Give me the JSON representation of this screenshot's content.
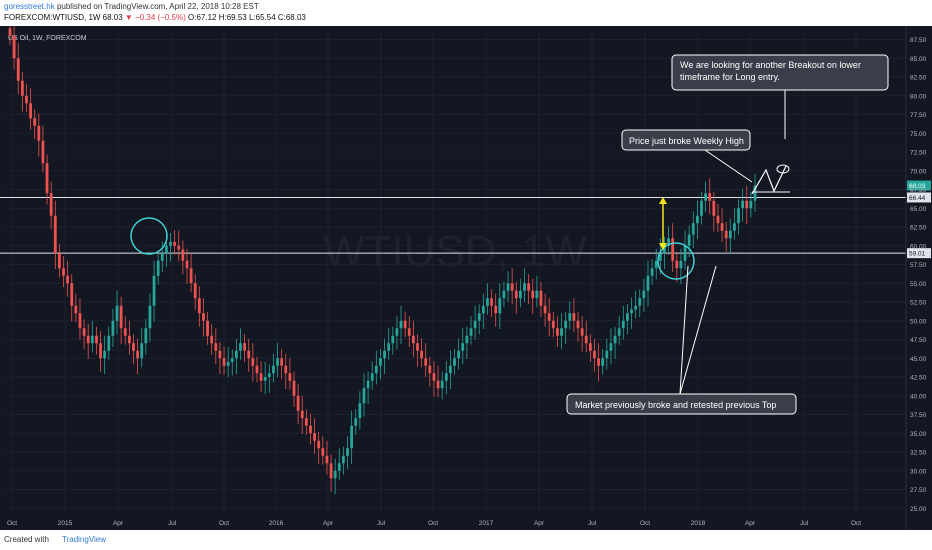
{
  "header": {
    "author": "goresstreet.hk",
    "published": "published on TradingView.com, April 22, 2018 10:28 EST",
    "symbol_line_prefix": "FOREXCOM:WTIUSD, 1W  68.03",
    "change": "−0.34 (−0.5%)",
    "ohlc": "O:67.12 H:69.53 L:65.54 C:68.03"
  },
  "chart_label": "US Oil, 1W, FOREXCOM",
  "watermark": "WTIUSD, 1W",
  "footer": {
    "created_with": "Created with",
    "brand": "TradingView"
  },
  "colors": {
    "up": "#26a69a",
    "down": "#ef5350",
    "background": "#131722",
    "circle": "#3fd0d4",
    "arrow": "#f5e61b"
  },
  "annotations": {
    "callout_top": "We are looking for another Breakout on lower timeframe for Long entry.",
    "callout_mid": "Price just broke Weekly High",
    "callout_bottom": "Market previously broke and retested previous Top"
  },
  "chart_data": {
    "type": "candlestick",
    "y_ticks": [
      "87.50",
      "85.00",
      "82.50",
      "80.00",
      "77.50",
      "75.00",
      "72.50",
      "70.00",
      "67.50",
      "65.00",
      "62.50",
      "60.00",
      "57.50",
      "55.00",
      "52.50",
      "50.00",
      "47.50",
      "45.00",
      "42.50",
      "40.00",
      "37.50",
      "35.00",
      "32.50",
      "30.00",
      "27.50",
      "25.00"
    ],
    "x_ticks": [
      "Oct",
      "2015",
      "Apr",
      "Jul",
      "Oct",
      "2016",
      "Apr",
      "Jul",
      "Oct",
      "2017",
      "Apr",
      "Jul",
      "Oct",
      "2018",
      "Apr",
      "Jul",
      "Oct"
    ],
    "ylim": [
      24.5,
      88.5
    ],
    "last_price_label": "68.03",
    "levels": [
      {
        "value": 66.44,
        "label": "66.44"
      },
      {
        "value": 59.01,
        "label": "59.01"
      }
    ],
    "weekly_closes": [
      88,
      85,
      82,
      80,
      79,
      77,
      76,
      74,
      71,
      67,
      64,
      59,
      57,
      56,
      55,
      52,
      51,
      49,
      48,
      47,
      48,
      47,
      45,
      46,
      48,
      50,
      52,
      49,
      48,
      47,
      46,
      45,
      47,
      49,
      52,
      56,
      58,
      59,
      60,
      60.5,
      60,
      59.5,
      58,
      57,
      55,
      53,
      51,
      50,
      48,
      47,
      46,
      45,
      44,
      44.5,
      45,
      46,
      47,
      46,
      45,
      44,
      43,
      42,
      42.5,
      43,
      44,
      45,
      44,
      43,
      42,
      40,
      38,
      37,
      36,
      35,
      34,
      33,
      32,
      31,
      29,
      30,
      31,
      32,
      33,
      36,
      37,
      39,
      41,
      42,
      43,
      44,
      45,
      46,
      47,
      48,
      49,
      50,
      49,
      48,
      47,
      46,
      45,
      44,
      43,
      42,
      41,
      42,
      43,
      44,
      45,
      46,
      47,
      48,
      49,
      50,
      51,
      52,
      53,
      52,
      51,
      53,
      54,
      55,
      54,
      53,
      54,
      55,
      54,
      53,
      54,
      52,
      51,
      50,
      49,
      48,
      49,
      50,
      51,
      50,
      49,
      48,
      47,
      46,
      45,
      44,
      45,
      46,
      47,
      48,
      49,
      50,
      51,
      51.5,
      52,
      53,
      54,
      56,
      57,
      58,
      59,
      60,
      61,
      58,
      57,
      58,
      60,
      61.5,
      63,
      64,
      66,
      67,
      66,
      64,
      63,
      62,
      61,
      62,
      63,
      65,
      66,
      65,
      66,
      68
    ]
  }
}
